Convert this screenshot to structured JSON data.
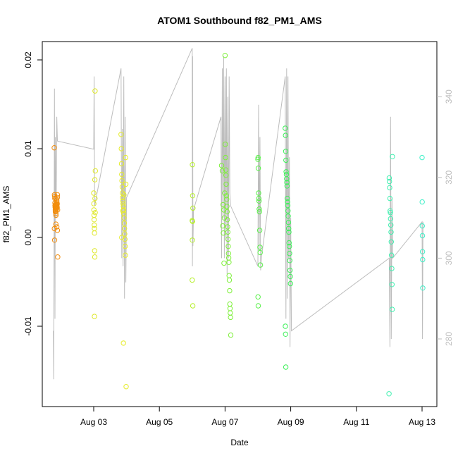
{
  "chart_data": {
    "type": "scatter",
    "title": "ATOM1 Southbound f82_PM1_AMS",
    "xlabel": "Date",
    "ylabel": "f82_PM1_AMS",
    "x_ticks": [
      "Aug 03",
      "Aug 05",
      "Aug 07",
      "Aug 09",
      "Aug 11",
      "Aug 13"
    ],
    "y_ticks": [
      "-0.01",
      "0.00",
      "0.01",
      "0.02"
    ],
    "y2_ticks": [
      "280",
      "300",
      "320",
      "340"
    ],
    "grid": false,
    "colors": {
      "axis": "#000000",
      "secondary_line": "#bdbdbd",
      "secondary_axis": "#bdbdbd"
    },
    "series": [
      {
        "day": "2022-08-01",
        "color": "#f28c0a",
        "points": [
          [
            "2022-08-01T19:10",
            0.0101
          ],
          [
            "2022-08-01T19:20",
            0.0048
          ],
          [
            "2022-08-01T19:30",
            0.0046
          ],
          [
            "2022-08-01T19:35",
            0.0044
          ],
          [
            "2022-08-01T19:40",
            0.0039
          ],
          [
            "2022-08-01T19:45",
            0.0036
          ],
          [
            "2022-08-01T19:50",
            0.0034
          ],
          [
            "2022-08-01T19:55",
            0.0031
          ],
          [
            "2022-08-01T20:00",
            0.0029
          ],
          [
            "2022-08-01T20:05",
            0.0037
          ],
          [
            "2022-08-01T20:10",
            0.0033
          ],
          [
            "2022-08-01T20:15",
            0.003
          ],
          [
            "2022-08-01T20:20",
            0.0027
          ],
          [
            "2022-08-01T20:25",
            0.0025
          ],
          [
            "2022-08-01T20:30",
            0.0044
          ],
          [
            "2022-08-01T20:35",
            0.0038
          ],
          [
            "2022-08-01T20:40",
            0.0035
          ],
          [
            "2022-08-01T20:45",
            0.0032
          ],
          [
            "2022-08-01T20:50",
            0.0036
          ],
          [
            "2022-08-01T20:55",
            0.0033
          ],
          [
            "2022-08-01T21:00",
            0.0042
          ],
          [
            "2022-08-01T21:05",
            0.004
          ],
          [
            "2022-08-01T21:10",
            0.0037
          ],
          [
            "2022-08-01T21:15",
            0.0034
          ],
          [
            "2022-08-01T21:20",
            0.0038
          ],
          [
            "2022-08-01T21:25",
            0.0045
          ],
          [
            "2022-08-01T21:30",
            0.0048
          ],
          [
            "2022-08-01T21:35",
            0.0031
          ],
          [
            "2022-08-01T19:15",
            0.001
          ],
          [
            "2022-08-01T19:25",
            -0.0003
          ],
          [
            "2022-08-01T20:20",
            0.0015
          ],
          [
            "2022-08-01T21:00",
            0.0012
          ],
          [
            "2022-08-01T21:25",
            0.0008
          ],
          [
            "2022-08-01T21:40",
            -0.0022
          ]
        ]
      },
      {
        "day": "2022-08-03",
        "color": "#dfe82a",
        "points": [
          [
            "2022-08-03T00:00",
            0.005
          ],
          [
            "2022-08-03T00:05",
            0.0038
          ],
          [
            "2022-08-03T00:10",
            0.0031
          ],
          [
            "2022-08-03T00:15",
            0.0025
          ],
          [
            "2022-08-03T00:20",
            0.002
          ],
          [
            "2022-08-03T00:25",
            0.0014
          ],
          [
            "2022-08-03T00:30",
            0.001
          ],
          [
            "2022-08-03T00:35",
            0.0005
          ],
          [
            "2022-08-03T00:40",
            -0.0015
          ],
          [
            "2022-08-03T00:45",
            -0.0022
          ],
          [
            "2022-08-03T01:00",
            0.0165
          ],
          [
            "2022-08-03T01:10",
            0.0075
          ],
          [
            "2022-08-03T00:50",
            0.0065
          ],
          [
            "2022-08-03T00:55",
            0.0044
          ],
          [
            "2022-08-03T01:05",
            0.0028
          ],
          [
            "2022-08-03T00:30",
            -0.0089
          ]
        ]
      },
      {
        "day": "2022-08-03b",
        "color": "#e6ec28",
        "points": [
          [
            "2022-08-03T20:00",
            0.0116
          ],
          [
            "2022-08-03T20:10",
            0.01
          ],
          [
            "2022-08-03T20:20",
            0.0083
          ],
          [
            "2022-08-03T20:30",
            0.0071
          ],
          [
            "2022-08-03T20:40",
            0.0064
          ],
          [
            "2022-08-03T20:50",
            0.0057
          ],
          [
            "2022-08-03T21:00",
            0.005
          ],
          [
            "2022-08-03T21:10",
            0.0045
          ],
          [
            "2022-08-03T21:20",
            0.0041
          ],
          [
            "2022-08-03T21:30",
            0.0038
          ],
          [
            "2022-08-03T21:40",
            0.0035
          ],
          [
            "2022-08-03T21:50",
            0.0031
          ],
          [
            "2022-08-03T22:00",
            0.0027
          ],
          [
            "2022-08-03T22:10",
            0.0022
          ],
          [
            "2022-08-03T22:20",
            0.0016
          ],
          [
            "2022-08-03T22:30",
            0.001
          ],
          [
            "2022-08-03T22:40",
            0.0004
          ],
          [
            "2022-08-03T22:50",
            -0.0002
          ],
          [
            "2022-08-03T23:00",
            -0.001
          ],
          [
            "2022-08-03T23:10",
            -0.002
          ],
          [
            "2022-08-03T23:20",
            0.009
          ],
          [
            "2022-08-03T23:30",
            0.006
          ],
          [
            "2022-08-03T21:15",
            0.003
          ],
          [
            "2022-08-03T22:05",
            0.0048
          ],
          [
            "2022-08-03T21:45",
            -0.0119
          ],
          [
            "2022-08-03T23:40",
            -0.0168
          ],
          [
            "2022-08-03T20:30",
            0.0
          ]
        ]
      },
      {
        "day": "2022-08-06",
        "color": "#b6f02a",
        "points": [
          [
            "2022-08-06T00:10",
            0.0082
          ],
          [
            "2022-08-06T00:20",
            0.0047
          ],
          [
            "2022-08-06T00:30",
            0.0033
          ],
          [
            "2022-08-06T00:00",
            0.0019
          ],
          [
            "2022-08-06T00:15",
            0.0018
          ],
          [
            "2022-08-06T00:05",
            -0.0003
          ],
          [
            "2022-08-06T00:00",
            -0.0048
          ],
          [
            "2022-08-06T00:25",
            -0.0077
          ]
        ]
      },
      {
        "day": "2022-08-07",
        "color": "#7ef03a",
        "points": [
          [
            "2022-08-06T21:30",
            0.0081
          ],
          [
            "2022-08-06T22:00",
            0.0075
          ],
          [
            "2022-08-06T22:30",
            0.0037
          ],
          [
            "2022-08-06T23:00",
            0.0031
          ],
          [
            "2022-08-06T23:30",
            0.0022
          ],
          [
            "2022-08-07T00:00",
            0.0205
          ],
          [
            "2022-08-07T00:10",
            0.0105
          ],
          [
            "2022-08-07T00:20",
            0.009
          ],
          [
            "2022-08-07T00:30",
            0.0076
          ],
          [
            "2022-08-07T00:40",
            0.007
          ],
          [
            "2022-08-07T00:50",
            0.006
          ],
          [
            "2022-08-07T01:00",
            0.0047
          ],
          [
            "2022-08-07T01:10",
            0.0043
          ],
          [
            "2022-08-07T01:20",
            0.0035
          ],
          [
            "2022-08-07T01:30",
            0.0029
          ],
          [
            "2022-08-07T01:40",
            0.002
          ],
          [
            "2022-08-07T01:50",
            0.0012
          ],
          [
            "2022-08-07T02:00",
            0.0006
          ],
          [
            "2022-08-07T02:10",
            -0.0002
          ],
          [
            "2022-08-07T02:20",
            -0.001
          ],
          [
            "2022-08-07T02:30",
            -0.0018
          ],
          [
            "2022-08-07T02:40",
            -0.0023
          ],
          [
            "2022-08-07T02:50",
            -0.0028
          ],
          [
            "2022-08-07T03:00",
            -0.0043
          ],
          [
            "2022-08-07T03:10",
            -0.0048
          ],
          [
            "2022-08-07T03:20",
            -0.006
          ],
          [
            "2022-08-07T03:30",
            -0.0075
          ],
          [
            "2022-08-07T03:40",
            -0.008
          ],
          [
            "2022-08-07T03:50",
            -0.0085
          ],
          [
            "2022-08-07T04:00",
            -0.009
          ],
          [
            "2022-08-07T04:10",
            -0.011
          ],
          [
            "2022-08-06T22:15",
            0.0013
          ],
          [
            "2022-08-06T22:45",
            0.0005
          ],
          [
            "2022-08-06T23:15",
            -0.0029
          ],
          [
            "2022-08-06T23:45",
            0.005
          ]
        ]
      },
      {
        "day": "2022-08-08",
        "color": "#5af04a",
        "points": [
          [
            "2022-08-08T00:00",
            0.0088
          ],
          [
            "2022-08-08T00:10",
            0.009
          ],
          [
            "2022-08-08T00:20",
            0.0078
          ],
          [
            "2022-08-08T00:30",
            0.005
          ],
          [
            "2022-08-08T00:40",
            0.0044
          ],
          [
            "2022-08-08T00:50",
            0.0041
          ],
          [
            "2022-08-08T01:00",
            0.0032
          ],
          [
            "2022-08-08T01:10",
            0.0029
          ],
          [
            "2022-08-08T01:20",
            0.0008
          ],
          [
            "2022-08-08T01:30",
            -0.0011
          ],
          [
            "2022-08-08T01:40",
            -0.0017
          ],
          [
            "2022-08-08T01:50",
            -0.0031
          ],
          [
            "2022-08-08T00:05",
            -0.0067
          ],
          [
            "2022-08-08T00:15",
            -0.0077
          ]
        ]
      },
      {
        "day": "2022-08-09",
        "color": "#3ef05a",
        "points": [
          [
            "2022-08-08T20:00",
            0.0123
          ],
          [
            "2022-08-08T20:10",
            0.0115
          ],
          [
            "2022-08-08T20:20",
            0.0097
          ],
          [
            "2022-08-08T20:30",
            0.0087
          ],
          [
            "2022-08-08T20:40",
            0.0074
          ],
          [
            "2022-08-08T20:50",
            0.0071
          ],
          [
            "2022-08-08T21:00",
            0.0066
          ],
          [
            "2022-08-08T21:10",
            0.0062
          ],
          [
            "2022-08-08T21:20",
            0.0058
          ],
          [
            "2022-08-08T21:30",
            0.0044
          ],
          [
            "2022-08-08T21:40",
            0.004
          ],
          [
            "2022-08-08T21:50",
            0.0036
          ],
          [
            "2022-08-08T22:00",
            0.003
          ],
          [
            "2022-08-08T22:10",
            0.0024
          ],
          [
            "2022-08-08T22:20",
            0.0017
          ],
          [
            "2022-08-08T22:30",
            0.001
          ],
          [
            "2022-08-08T22:40",
            0.0006
          ],
          [
            "2022-08-08T22:50",
            -0.0006
          ],
          [
            "2022-08-08T23:00",
            -0.001
          ],
          [
            "2022-08-08T23:10",
            -0.0018
          ],
          [
            "2022-08-08T23:20",
            -0.0026
          ],
          [
            "2022-08-08T23:30",
            -0.0037
          ],
          [
            "2022-08-08T23:40",
            -0.0044
          ],
          [
            "2022-08-08T23:50",
            -0.0052
          ],
          [
            "2022-08-08T20:05",
            -0.01
          ],
          [
            "2022-08-08T20:15",
            -0.0109
          ],
          [
            "2022-08-08T20:25",
            -0.0146
          ]
        ]
      },
      {
        "day": "2022-08-12",
        "color": "#3ff0b0",
        "points": [
          [
            "2022-08-12T00:00",
            0.0067
          ],
          [
            "2022-08-12T00:10",
            0.0063
          ],
          [
            "2022-08-12T00:20",
            0.0056
          ],
          [
            "2022-08-12T00:30",
            0.0044
          ],
          [
            "2022-08-12T00:40",
            0.003
          ],
          [
            "2022-08-12T00:50",
            0.0028
          ],
          [
            "2022-08-12T01:00",
            0.0021
          ],
          [
            "2022-08-12T01:10",
            0.0014
          ],
          [
            "2022-08-12T01:20",
            0.0006
          ],
          [
            "2022-08-12T01:30",
            -0.0005
          ],
          [
            "2022-08-12T01:40",
            -0.002
          ],
          [
            "2022-08-12T01:50",
            -0.0035
          ],
          [
            "2022-08-12T02:00",
            -0.0053
          ],
          [
            "2022-08-12T02:10",
            -0.0081
          ],
          [
            "2022-08-12T02:20",
            0.0091
          ],
          [
            "2022-08-11T23:50",
            -0.0176
          ]
        ]
      },
      {
        "day": "2022-08-13",
        "color": "#3ff0c8",
        "points": [
          [
            "2022-08-13T00:00",
            0.009
          ],
          [
            "2022-08-13T00:05",
            0.004
          ],
          [
            "2022-08-13T00:10",
            0.0013
          ],
          [
            "2022-08-13T00:15",
            0.0002
          ],
          [
            "2022-08-13T00:20",
            -0.0016
          ],
          [
            "2022-08-13T00:25",
            -0.0025
          ],
          [
            "2022-08-13T00:30",
            -0.0057
          ]
        ]
      }
    ],
    "secondary_line": [
      [
        "2022-08-01T18:30",
        282
      ],
      [
        "2022-08-01T18:45",
        270
      ],
      [
        "2022-08-01T19:00",
        300
      ],
      [
        "2022-08-01T19:20",
        342
      ],
      [
        "2022-08-01T19:40",
        285
      ],
      [
        "2022-08-01T20:00",
        330
      ],
      [
        "2022-08-01T20:30",
        310
      ],
      [
        "2022-08-01T21:00",
        335
      ],
      [
        "2022-08-01T21:30",
        329
      ],
      [
        "2022-08-03T00:00",
        327
      ],
      [
        "2022-08-03T00:20",
        345
      ],
      [
        "2022-08-03T00:40",
        313
      ],
      [
        "2022-08-03T20:00",
        347
      ],
      [
        "2022-08-03T20:30",
        300
      ],
      [
        "2022-08-03T21:00",
        332
      ],
      [
        "2022-08-03T21:30",
        298
      ],
      [
        "2022-08-03T22:00",
        345
      ],
      [
        "2022-08-03T22:30",
        290
      ],
      [
        "2022-08-03T23:00",
        335
      ],
      [
        "2022-08-03T23:30",
        294
      ],
      [
        "2022-08-04T00:00",
        315
      ],
      [
        "2022-08-06T00:00",
        352
      ],
      [
        "2022-08-06T00:10",
        298
      ],
      [
        "2022-08-06T00:20",
        350
      ],
      [
        "2022-08-06T00:30",
        303
      ],
      [
        "2022-08-06T01:00",
        312
      ],
      [
        "2022-08-06T21:00",
        335
      ],
      [
        "2022-08-06T21:30",
        300
      ],
      [
        "2022-08-06T22:00",
        347
      ],
      [
        "2022-08-06T22:30",
        310
      ],
      [
        "2022-08-06T23:00",
        350
      ],
      [
        "2022-08-06T23:30",
        300
      ],
      [
        "2022-08-07T00:00",
        345
      ],
      [
        "2022-08-07T00:30",
        305
      ],
      [
        "2022-08-07T01:00",
        347
      ],
      [
        "2022-08-07T01:30",
        296
      ],
      [
        "2022-08-07T02:00",
        340
      ],
      [
        "2022-08-07T02:30",
        300
      ],
      [
        "2022-08-07T03:00",
        345
      ],
      [
        "2022-08-07T03:30",
        316
      ],
      [
        "2022-08-07T04:00",
        313
      ],
      [
        "2022-08-08T00:00",
        298
      ],
      [
        "2022-08-08T00:30",
        338
      ],
      [
        "2022-08-08T01:00",
        302
      ],
      [
        "2022-08-08T01:30",
        330
      ],
      [
        "2022-08-08T02:00",
        297
      ],
      [
        "2022-08-08T02:30",
        300
      ],
      [
        "2022-08-08T20:00",
        345
      ],
      [
        "2022-08-08T20:30",
        285
      ],
      [
        "2022-08-08T21:00",
        347
      ],
      [
        "2022-08-08T21:30",
        290
      ],
      [
        "2022-08-08T22:00",
        345
      ],
      [
        "2022-08-08T22:30",
        300
      ],
      [
        "2022-08-08T23:00",
        325
      ],
      [
        "2022-08-08T23:30",
        278
      ],
      [
        "2022-08-09T00:00",
        310
      ],
      [
        "2022-08-09T00:30",
        282
      ],
      [
        "2022-08-12T00:00",
        300
      ],
      [
        "2022-08-12T00:30",
        278
      ],
      [
        "2022-08-12T01:00",
        335
      ],
      [
        "2022-08-12T01:30",
        280
      ],
      [
        "2022-08-12T02:00",
        315
      ],
      [
        "2022-08-12T02:30",
        300
      ],
      [
        "2022-08-13T00:00",
        309
      ],
      [
        "2022-08-13T00:20",
        280
      ],
      [
        "2022-08-13T00:40",
        309
      ]
    ]
  }
}
